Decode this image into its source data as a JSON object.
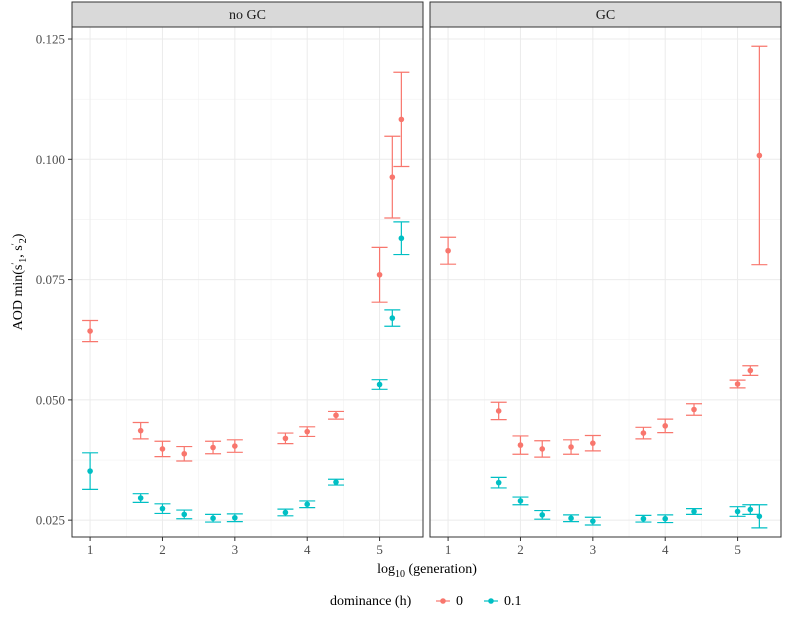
{
  "chart_data": {
    "type": "scatter",
    "subtype": "point-with-errorbars, faceted",
    "ylabel": "AOD min(s'1, s'2)",
    "xlabel": "log10 (generation)",
    "xlim": [
      0.75,
      5.6
    ],
    "ylim": [
      0.0215,
      0.1275
    ],
    "xticks": [
      1,
      2,
      3,
      4,
      5
    ],
    "yticks": [
      0.025,
      0.05,
      0.075,
      0.1,
      0.125
    ],
    "ytick_labels": [
      "0.025",
      "0.050",
      "0.075",
      "0.100",
      "0.125"
    ],
    "grid": true,
    "legend": {
      "title": "dominance (h)",
      "position": "bottom",
      "entries": [
        {
          "label": "0",
          "color": "#F8766D"
        },
        {
          "label": "0.1",
          "color": "#00BFC4"
        }
      ]
    },
    "panels": [
      {
        "strip": "no GC",
        "series": [
          {
            "name": "0",
            "color": "#F8766D",
            "points": [
              {
                "x": 1.0,
                "y": 0.0643,
                "lo": 0.0621,
                "hi": 0.0665
              },
              {
                "x": 1.699,
                "y": 0.0436,
                "lo": 0.0419,
                "hi": 0.0453
              },
              {
                "x": 2.0,
                "y": 0.0398,
                "lo": 0.0382,
                "hi": 0.0414
              },
              {
                "x": 2.301,
                "y": 0.0388,
                "lo": 0.0373,
                "hi": 0.0403
              },
              {
                "x": 2.699,
                "y": 0.0401,
                "lo": 0.0388,
                "hi": 0.0414
              },
              {
                "x": 3.0,
                "y": 0.0404,
                "lo": 0.0391,
                "hi": 0.0417
              },
              {
                "x": 3.699,
                "y": 0.042,
                "lo": 0.0409,
                "hi": 0.0431
              },
              {
                "x": 4.0,
                "y": 0.0434,
                "lo": 0.0424,
                "hi": 0.0444
              },
              {
                "x": 4.398,
                "y": 0.0468,
                "lo": 0.046,
                "hi": 0.0476
              },
              {
                "x": 5.0,
                "y": 0.076,
                "lo": 0.0703,
                "hi": 0.0817
              },
              {
                "x": 5.176,
                "y": 0.0963,
                "lo": 0.0878,
                "hi": 0.1048
              },
              {
                "x": 5.301,
                "y": 0.1083,
                "lo": 0.0985,
                "hi": 0.1181
              }
            ]
          },
          {
            "name": "0.1",
            "color": "#00BFC4",
            "points": [
              {
                "x": 1.0,
                "y": 0.0352,
                "lo": 0.0314,
                "hi": 0.039
              },
              {
                "x": 1.699,
                "y": 0.0296,
                "lo": 0.0287,
                "hi": 0.0305
              },
              {
                "x": 2.0,
                "y": 0.0274,
                "lo": 0.0264,
                "hi": 0.0284
              },
              {
                "x": 2.301,
                "y": 0.0262,
                "lo": 0.0253,
                "hi": 0.0271
              },
              {
                "x": 2.699,
                "y": 0.0254,
                "lo": 0.0246,
                "hi": 0.0262
              },
              {
                "x": 3.0,
                "y": 0.0255,
                "lo": 0.0247,
                "hi": 0.0263
              },
              {
                "x": 3.699,
                "y": 0.0266,
                "lo": 0.0259,
                "hi": 0.0273
              },
              {
                "x": 4.0,
                "y": 0.0283,
                "lo": 0.0276,
                "hi": 0.029
              },
              {
                "x": 4.398,
                "y": 0.0329,
                "lo": 0.0323,
                "hi": 0.0335
              },
              {
                "x": 5.0,
                "y": 0.0532,
                "lo": 0.0522,
                "hi": 0.0542
              },
              {
                "x": 5.176,
                "y": 0.067,
                "lo": 0.0653,
                "hi": 0.0687
              },
              {
                "x": 5.301,
                "y": 0.0836,
                "lo": 0.0802,
                "hi": 0.087
              }
            ]
          }
        ]
      },
      {
        "strip": "GC",
        "series": [
          {
            "name": "0",
            "color": "#F8766D",
            "points": [
              {
                "x": 1.0,
                "y": 0.081,
                "lo": 0.0782,
                "hi": 0.0838
              },
              {
                "x": 1.699,
                "y": 0.0477,
                "lo": 0.0459,
                "hi": 0.0495
              },
              {
                "x": 2.0,
                "y": 0.0406,
                "lo": 0.0387,
                "hi": 0.0425
              },
              {
                "x": 2.301,
                "y": 0.0398,
                "lo": 0.0381,
                "hi": 0.0415
              },
              {
                "x": 2.699,
                "y": 0.0402,
                "lo": 0.0387,
                "hi": 0.0417
              },
              {
                "x": 3.0,
                "y": 0.041,
                "lo": 0.0394,
                "hi": 0.0426
              },
              {
                "x": 3.699,
                "y": 0.0431,
                "lo": 0.0419,
                "hi": 0.0443
              },
              {
                "x": 4.0,
                "y": 0.0446,
                "lo": 0.0432,
                "hi": 0.046
              },
              {
                "x": 4.398,
                "y": 0.048,
                "lo": 0.0468,
                "hi": 0.0492
              },
              {
                "x": 5.0,
                "y": 0.0533,
                "lo": 0.0525,
                "hi": 0.0541
              },
              {
                "x": 5.176,
                "y": 0.0561,
                "lo": 0.0551,
                "hi": 0.0571
              },
              {
                "x": 5.301,
                "y": 0.1008,
                "lo": 0.0781,
                "hi": 0.1235
              }
            ]
          },
          {
            "name": "0.1",
            "color": "#00BFC4",
            "points": [
              {
                "x": 1.699,
                "y": 0.0328,
                "lo": 0.0317,
                "hi": 0.0339
              },
              {
                "x": 2.0,
                "y": 0.029,
                "lo": 0.0282,
                "hi": 0.0298
              },
              {
                "x": 2.301,
                "y": 0.0261,
                "lo": 0.0252,
                "hi": 0.027
              },
              {
                "x": 2.699,
                "y": 0.0254,
                "lo": 0.0247,
                "hi": 0.0261
              },
              {
                "x": 3.0,
                "y": 0.0248,
                "lo": 0.024,
                "hi": 0.0256
              },
              {
                "x": 3.699,
                "y": 0.0253,
                "lo": 0.0246,
                "hi": 0.026
              },
              {
                "x": 4.0,
                "y": 0.0253,
                "lo": 0.0245,
                "hi": 0.0261
              },
              {
                "x": 4.398,
                "y": 0.0268,
                "lo": 0.0262,
                "hi": 0.0274
              },
              {
                "x": 5.0,
                "y": 0.0268,
                "lo": 0.0258,
                "hi": 0.0278
              },
              {
                "x": 5.176,
                "y": 0.0272,
                "lo": 0.0262,
                "hi": 0.0282
              },
              {
                "x": 5.301,
                "y": 0.0258,
                "lo": 0.0234,
                "hi": 0.0282
              }
            ]
          }
        ]
      }
    ]
  }
}
